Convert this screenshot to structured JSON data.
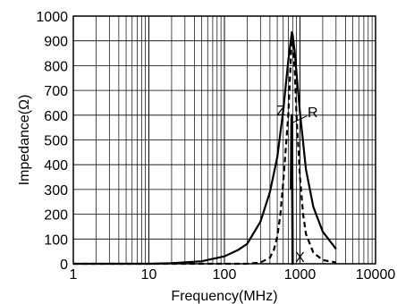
{
  "chart_data": {
    "type": "line",
    "x_scale": "log",
    "xlim": [
      1,
      10000
    ],
    "ylim": [
      0,
      1000
    ],
    "xlabel": "Frequency(MHz)",
    "ylabel": "Impedance(Ω)",
    "grid": true,
    "x_ticks": [
      1,
      10,
      100,
      1000,
      10000
    ],
    "x_tick_labels": [
      "1",
      "10",
      "100",
      "1000",
      "10000"
    ],
    "y_ticks": [
      0,
      100,
      200,
      300,
      400,
      500,
      600,
      700,
      800,
      900,
      1000
    ],
    "y_tick_labels": [
      "0",
      "100",
      "200",
      "300",
      "400",
      "500",
      "600",
      "700",
      "800",
      "900",
      "1000"
    ],
    "series": [
      {
        "name": "Z",
        "style": "solid",
        "x": [
          1,
          10,
          20,
          50,
          100,
          150,
          200,
          300,
          400,
          500,
          600,
          700,
          780,
          800,
          850,
          900,
          1000,
          1200,
          1500,
          2000,
          3000
        ],
        "values": [
          0,
          0,
          2,
          10,
          30,
          55,
          80,
          170,
          290,
          430,
          620,
          820,
          935,
          925,
          860,
          770,
          610,
          380,
          230,
          130,
          60
        ]
      },
      {
        "name": "R",
        "style": "dashed",
        "x": [
          1,
          200,
          300,
          400,
          450,
          500,
          550,
          600,
          700,
          780,
          800,
          850,
          900,
          1000,
          1100,
          1200,
          1500,
          2000,
          3000
        ],
        "values": [
          0,
          0,
          5,
          25,
          55,
          110,
          200,
          330,
          600,
          920,
          905,
          790,
          600,
          350,
          200,
          120,
          45,
          15,
          5
        ]
      },
      {
        "name": "X",
        "style": "solid",
        "x": [
          760,
          765,
          770,
          775,
          780,
          785,
          790,
          795,
          800,
          810
        ],
        "values": [
          300,
          420,
          520,
          580,
          600,
          560,
          360,
          140,
          0,
          0
        ]
      }
    ],
    "annotations": [
      "Z",
      "R",
      "X"
    ]
  }
}
